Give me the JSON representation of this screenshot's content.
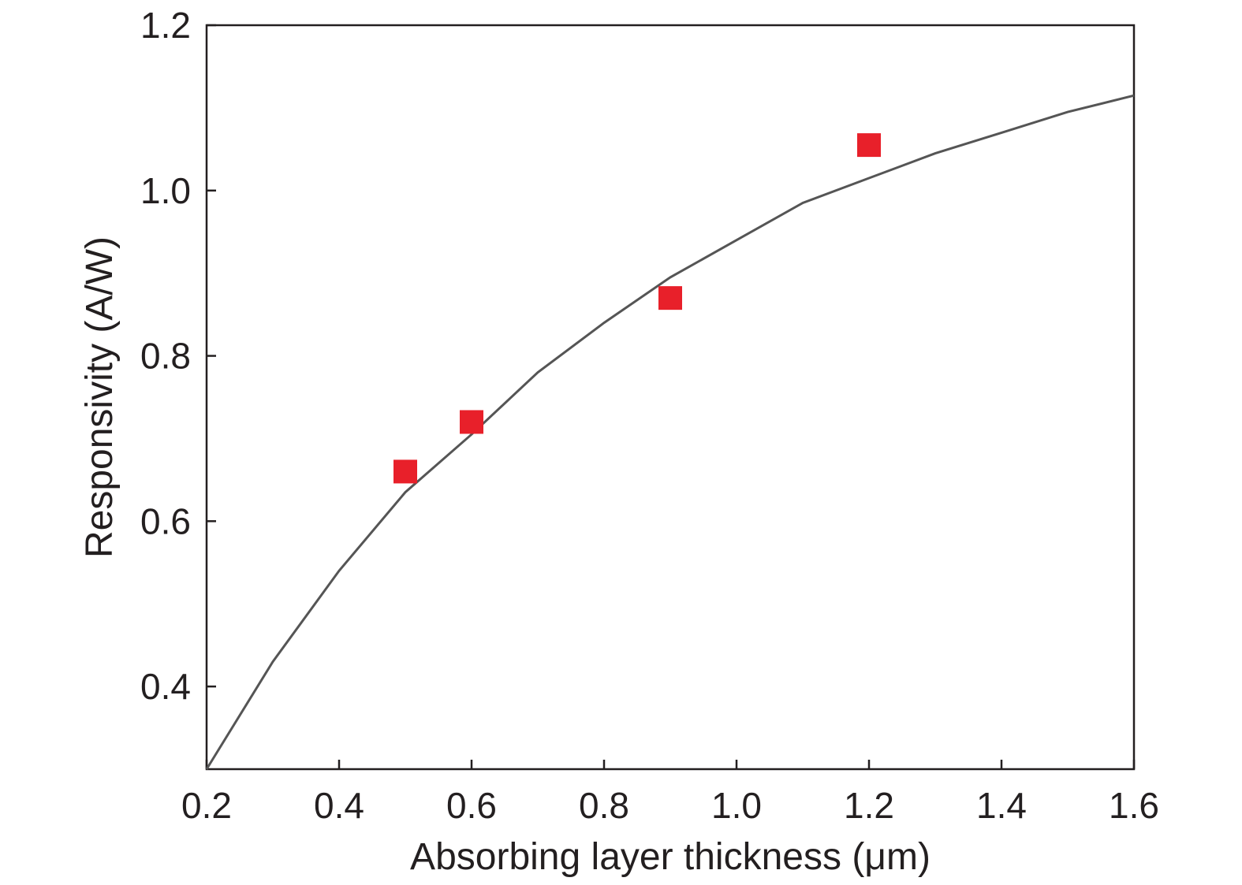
{
  "chart_data": {
    "type": "scatter",
    "title": "",
    "xlabel": "Absorbing layer thickness (μm)",
    "ylabel": "Responsivity (A/W)",
    "xlim": [
      0.2,
      1.6
    ],
    "ylim": [
      0.3,
      1.2
    ],
    "x_ticks": [
      0.2,
      0.4,
      0.6,
      0.8,
      1.0,
      1.2,
      1.4,
      1.6
    ],
    "x_tick_labels": [
      "0.2",
      "0.4",
      "0.6",
      "0.8",
      "1.0",
      "1.2",
      "1.4",
      "1.6"
    ],
    "y_ticks": [
      0.4,
      0.6,
      0.8,
      1.0,
      1.2
    ],
    "y_tick_labels": [
      "0.4",
      "0.6",
      "0.8",
      "1.0",
      "1.2"
    ],
    "grid": false,
    "series": [
      {
        "type": "scatter",
        "marker": "square",
        "color": "#e8202a",
        "x": [
          0.5,
          0.6,
          0.9,
          1.2
        ],
        "y": [
          0.66,
          0.72,
          0.87,
          1.055
        ]
      },
      {
        "type": "line",
        "color": "#555555",
        "x": [
          0.2,
          0.3,
          0.4,
          0.5,
          0.6,
          0.7,
          0.8,
          0.9,
          1.0,
          1.1,
          1.2,
          1.3,
          1.4,
          1.5,
          1.6
        ],
        "y": [
          0.3,
          0.43,
          0.54,
          0.635,
          0.705,
          0.78,
          0.84,
          0.895,
          0.94,
          0.985,
          1.015,
          1.045,
          1.07,
          1.095,
          1.115
        ]
      }
    ]
  }
}
